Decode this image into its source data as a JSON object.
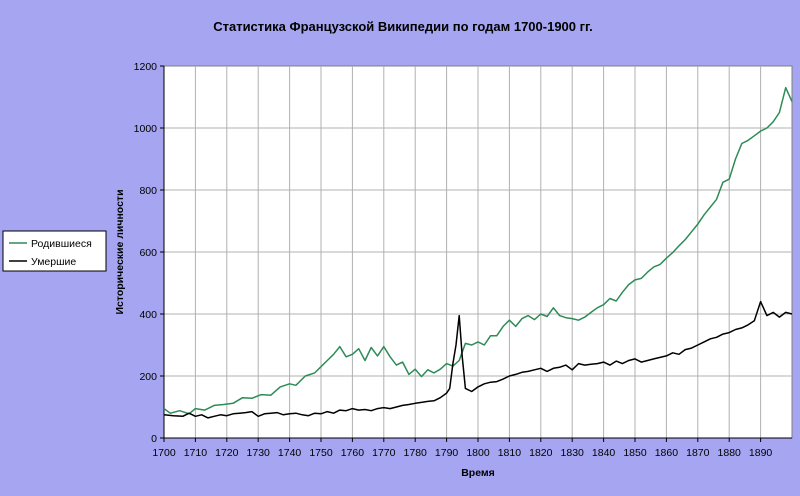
{
  "chart_data": {
    "type": "line",
    "title": "Статистика Французской Википедии по годам 1700-1900 гг.",
    "xlabel": "Время",
    "ylabel": "Исторические личности",
    "xlim": [
      1700,
      1900
    ],
    "ylim": [
      0,
      1200
    ],
    "x_ticks": [
      "1700",
      "1710",
      "1720",
      "1730",
      "1740",
      "1750",
      "1760",
      "1770",
      "1780",
      "1790",
      "1800",
      "1810",
      "1820",
      "1830",
      "1840",
      "1850",
      "1860",
      "1870",
      "1880",
      "1890"
    ],
    "y_ticks": [
      "0",
      "200",
      "400",
      "600",
      "800",
      "1000",
      "1200"
    ],
    "grid": true,
    "legend_position": "left",
    "series": [
      {
        "name": "Родившиеся",
        "color": "#2e8b57",
        "points": [
          [
            1700,
            95
          ],
          [
            1702,
            80
          ],
          [
            1705,
            88
          ],
          [
            1708,
            78
          ],
          [
            1710,
            95
          ],
          [
            1713,
            90
          ],
          [
            1716,
            105
          ],
          [
            1719,
            108
          ],
          [
            1722,
            112
          ],
          [
            1725,
            130
          ],
          [
            1728,
            128
          ],
          [
            1731,
            140
          ],
          [
            1734,
            138
          ],
          [
            1737,
            165
          ],
          [
            1740,
            175
          ],
          [
            1742,
            170
          ],
          [
            1745,
            200
          ],
          [
            1748,
            210
          ],
          [
            1750,
            230
          ],
          [
            1752,
            250
          ],
          [
            1754,
            270
          ],
          [
            1756,
            295
          ],
          [
            1758,
            262
          ],
          [
            1760,
            270
          ],
          [
            1762,
            288
          ],
          [
            1764,
            250
          ],
          [
            1766,
            292
          ],
          [
            1768,
            265
          ],
          [
            1770,
            295
          ],
          [
            1772,
            262
          ],
          [
            1774,
            235
          ],
          [
            1776,
            245
          ],
          [
            1778,
            205
          ],
          [
            1780,
            222
          ],
          [
            1782,
            198
          ],
          [
            1784,
            220
          ],
          [
            1786,
            210
          ],
          [
            1788,
            222
          ],
          [
            1790,
            240
          ],
          [
            1792,
            232
          ],
          [
            1794,
            250
          ],
          [
            1796,
            305
          ],
          [
            1798,
            300
          ],
          [
            1800,
            310
          ],
          [
            1802,
            300
          ],
          [
            1804,
            330
          ],
          [
            1806,
            330
          ],
          [
            1808,
            360
          ],
          [
            1810,
            380
          ],
          [
            1812,
            360
          ],
          [
            1814,
            385
          ],
          [
            1816,
            395
          ],
          [
            1818,
            382
          ],
          [
            1820,
            400
          ],
          [
            1822,
            392
          ],
          [
            1824,
            420
          ],
          [
            1826,
            395
          ],
          [
            1828,
            388
          ],
          [
            1830,
            385
          ],
          [
            1832,
            380
          ],
          [
            1834,
            390
          ],
          [
            1836,
            405
          ],
          [
            1838,
            420
          ],
          [
            1840,
            430
          ],
          [
            1842,
            450
          ],
          [
            1844,
            442
          ],
          [
            1846,
            470
          ],
          [
            1848,
            495
          ],
          [
            1850,
            510
          ],
          [
            1852,
            515
          ],
          [
            1854,
            535
          ],
          [
            1856,
            552
          ],
          [
            1858,
            560
          ],
          [
            1860,
            580
          ],
          [
            1862,
            598
          ],
          [
            1864,
            620
          ],
          [
            1866,
            640
          ],
          [
            1868,
            665
          ],
          [
            1870,
            690
          ],
          [
            1872,
            720
          ],
          [
            1874,
            745
          ],
          [
            1876,
            770
          ],
          [
            1878,
            825
          ],
          [
            1880,
            835
          ],
          [
            1882,
            900
          ],
          [
            1884,
            950
          ],
          [
            1886,
            960
          ],
          [
            1888,
            975
          ],
          [
            1890,
            990
          ],
          [
            1892,
            1000
          ],
          [
            1894,
            1020
          ],
          [
            1896,
            1050
          ],
          [
            1898,
            1130
          ],
          [
            1900,
            1085
          ]
        ]
      },
      {
        "name": "Умершие",
        "color": "#000000",
        "points": [
          [
            1700,
            75
          ],
          [
            1703,
            72
          ],
          [
            1706,
            70
          ],
          [
            1708,
            80
          ],
          [
            1710,
            70
          ],
          [
            1712,
            75
          ],
          [
            1714,
            65
          ],
          [
            1716,
            70
          ],
          [
            1718,
            75
          ],
          [
            1720,
            72
          ],
          [
            1722,
            78
          ],
          [
            1724,
            80
          ],
          [
            1726,
            82
          ],
          [
            1728,
            85
          ],
          [
            1730,
            70
          ],
          [
            1732,
            78
          ],
          [
            1734,
            80
          ],
          [
            1736,
            82
          ],
          [
            1738,
            75
          ],
          [
            1740,
            78
          ],
          [
            1742,
            80
          ],
          [
            1744,
            75
          ],
          [
            1746,
            72
          ],
          [
            1748,
            80
          ],
          [
            1750,
            78
          ],
          [
            1752,
            85
          ],
          [
            1754,
            80
          ],
          [
            1756,
            90
          ],
          [
            1758,
            88
          ],
          [
            1760,
            95
          ],
          [
            1762,
            90
          ],
          [
            1764,
            92
          ],
          [
            1766,
            88
          ],
          [
            1768,
            95
          ],
          [
            1770,
            98
          ],
          [
            1772,
            95
          ],
          [
            1774,
            100
          ],
          [
            1776,
            105
          ],
          [
            1778,
            108
          ],
          [
            1780,
            112
          ],
          [
            1782,
            115
          ],
          [
            1784,
            118
          ],
          [
            1786,
            120
          ],
          [
            1788,
            130
          ],
          [
            1790,
            145
          ],
          [
            1791,
            160
          ],
          [
            1792,
            240
          ],
          [
            1793,
            300
          ],
          [
            1794,
            395
          ],
          [
            1795,
            260
          ],
          [
            1796,
            160
          ],
          [
            1798,
            150
          ],
          [
            1800,
            165
          ],
          [
            1802,
            175
          ],
          [
            1804,
            180
          ],
          [
            1806,
            182
          ],
          [
            1808,
            190
          ],
          [
            1810,
            200
          ],
          [
            1812,
            205
          ],
          [
            1814,
            212
          ],
          [
            1816,
            215
          ],
          [
            1818,
            220
          ],
          [
            1820,
            225
          ],
          [
            1822,
            215
          ],
          [
            1824,
            225
          ],
          [
            1826,
            228
          ],
          [
            1828,
            235
          ],
          [
            1830,
            220
          ],
          [
            1832,
            240
          ],
          [
            1834,
            235
          ],
          [
            1836,
            238
          ],
          [
            1838,
            240
          ],
          [
            1840,
            245
          ],
          [
            1842,
            235
          ],
          [
            1844,
            248
          ],
          [
            1846,
            240
          ],
          [
            1848,
            250
          ],
          [
            1850,
            255
          ],
          [
            1852,
            245
          ],
          [
            1854,
            250
          ],
          [
            1856,
            255
          ],
          [
            1858,
            260
          ],
          [
            1860,
            265
          ],
          [
            1862,
            275
          ],
          [
            1864,
            270
          ],
          [
            1866,
            285
          ],
          [
            1868,
            290
          ],
          [
            1870,
            300
          ],
          [
            1872,
            310
          ],
          [
            1874,
            320
          ],
          [
            1876,
            325
          ],
          [
            1878,
            335
          ],
          [
            1880,
            340
          ],
          [
            1882,
            350
          ],
          [
            1884,
            355
          ],
          [
            1886,
            365
          ],
          [
            1888,
            378
          ],
          [
            1890,
            440
          ],
          [
            1892,
            395
          ],
          [
            1894,
            405
          ],
          [
            1896,
            390
          ],
          [
            1898,
            405
          ],
          [
            1900,
            400
          ]
        ]
      }
    ]
  }
}
